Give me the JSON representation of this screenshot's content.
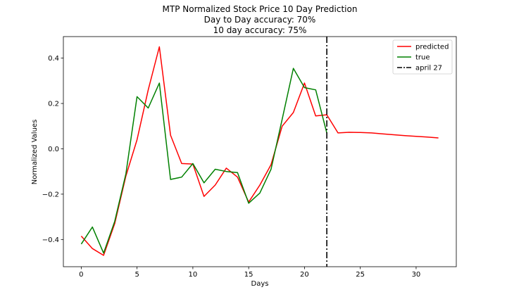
{
  "chart_data": {
    "type": "line",
    "title": "MTP Normalized Stock Price 10 Day Prediction",
    "subtitle_lines": [
      "Day to Day accuracy: 70%",
      "10 day accuracy: 75%"
    ],
    "xlabel": "Days",
    "ylabel": "Normalized Values",
    "xlim": [
      -1.6,
      33.6
    ],
    "ylim": [
      -0.52,
      0.495
    ],
    "xticks": [
      0,
      5,
      10,
      15,
      20,
      25,
      30
    ],
    "yticks": [
      -0.4,
      -0.2,
      0.0,
      0.2,
      0.4
    ],
    "xtick_labels": [
      "0",
      "5",
      "10",
      "15",
      "20",
      "25",
      "30"
    ],
    "ytick_labels": [
      "−0.4",
      "−0.2",
      "0.0",
      "0.2",
      "0.4"
    ],
    "grid": false,
    "legend_position": "top-right",
    "series": [
      {
        "name": "predicted",
        "color": "#ff0000",
        "style": "solid",
        "x": [
          0,
          1,
          2,
          3,
          4,
          5,
          6,
          7,
          8,
          9,
          10,
          11,
          12,
          13,
          14,
          15,
          16,
          17,
          18,
          19,
          20,
          21,
          22,
          23,
          24,
          25,
          26,
          27,
          28,
          29,
          30,
          31,
          32
        ],
        "y": [
          -0.385,
          -0.44,
          -0.47,
          -0.33,
          -0.12,
          0.04,
          0.26,
          0.45,
          0.06,
          -0.065,
          -0.067,
          -0.21,
          -0.16,
          -0.085,
          -0.125,
          -0.235,
          -0.16,
          -0.07,
          0.1,
          0.16,
          0.29,
          0.145,
          0.15,
          0.07,
          0.073,
          0.072,
          0.07,
          0.066,
          0.062,
          0.058,
          0.055,
          0.052,
          0.048
        ]
      },
      {
        "name": "true",
        "color": "#008000",
        "style": "solid",
        "x": [
          0,
          1,
          2,
          3,
          4,
          5,
          6,
          7,
          8,
          9,
          10,
          11,
          12,
          13,
          14,
          15,
          16,
          17,
          18,
          19,
          20,
          21,
          22
        ],
        "y": [
          -0.42,
          -0.345,
          -0.46,
          -0.32,
          -0.11,
          0.23,
          0.18,
          0.29,
          -0.135,
          -0.125,
          -0.065,
          -0.15,
          -0.09,
          -0.1,
          -0.105,
          -0.24,
          -0.195,
          -0.09,
          0.13,
          0.355,
          0.27,
          0.26,
          0.07
        ]
      },
      {
        "name": "april 27",
        "color": "#000000",
        "style": "dashdot",
        "vline_x": 22
      }
    ]
  }
}
